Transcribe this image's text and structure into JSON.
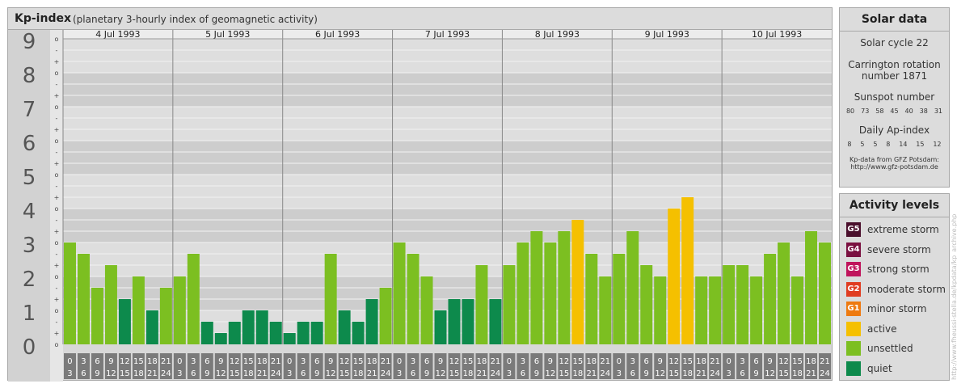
{
  "header": {
    "title": "Kp-index",
    "subtitle": "(planetary 3-hourly index of geomagnetic activity)"
  },
  "chart_data": {
    "type": "bar",
    "title": "Kp-index",
    "subtitle": "(planetary 3-hourly index of geomagnetic activity)",
    "ylim": [
      0,
      9
    ],
    "y_major_ticks": [
      "0",
      "1",
      "2",
      "3",
      "4",
      "5",
      "6",
      "7",
      "8",
      "9"
    ],
    "y_minor_ticks": [
      "-",
      "o",
      "+"
    ],
    "days": [
      "4 Jul 1993",
      "5 Jul 1993",
      "6 Jul 1993",
      "7 Jul 1993",
      "8 Jul 1993",
      "9 Jul 1993",
      "10 Jul 1993"
    ],
    "interval_start_hours": [
      "0",
      "3",
      "6",
      "9",
      "12",
      "15",
      "18",
      "21"
    ],
    "interval_end_hours": [
      "3",
      "6",
      "9",
      "12",
      "15",
      "18",
      "21",
      "24"
    ],
    "values": [
      3.0,
      2.667,
      1.667,
      2.333,
      1.333,
      2.0,
      1.0,
      1.667,
      2.0,
      2.667,
      0.667,
      0.333,
      0.667,
      1.0,
      1.0,
      0.667,
      0.333,
      0.667,
      0.667,
      2.667,
      1.0,
      0.667,
      1.333,
      1.667,
      3.0,
      2.667,
      2.0,
      1.0,
      1.333,
      1.333,
      2.333,
      1.333,
      2.333,
      3.0,
      3.333,
      3.0,
      3.333,
      3.667,
      2.667,
      2.0,
      2.667,
      3.333,
      2.333,
      2.0,
      4.0,
      4.333,
      2.0,
      2.0,
      2.333,
      2.333,
      2.0,
      2.667,
      3.0,
      2.0,
      3.333,
      3.0
    ],
    "color_scale": {
      "quiet": "#0d8a4c",
      "unsettled": "#7cbf21",
      "active": "#f5c000"
    },
    "grid": true
  },
  "solar_data": {
    "title": "Solar data",
    "solar_cycle": "Solar cycle 22",
    "carrington_line1": "Carrington rotation",
    "carrington_line2": "number 1871",
    "sunspot_title": "Sunspot number",
    "sunspot_values": [
      "80",
      "73",
      "58",
      "45",
      "40",
      "38",
      "31"
    ],
    "ap_title": "Daily Ap-index",
    "ap_values": [
      "8",
      "5",
      "5",
      "8",
      "14",
      "15",
      "12"
    ],
    "source_line1": "Kp-data from GFZ Potsdam:",
    "source_line2": "http://www.gfz-potsdam.de"
  },
  "activity_levels": {
    "title": "Activity levels",
    "items": [
      {
        "code": "G5",
        "label": "extreme storm",
        "color": "#4a0f2c",
        "icon": "g5-badge"
      },
      {
        "code": "G4",
        "label": "severe storm",
        "color": "#7a1040",
        "icon": "g4-badge"
      },
      {
        "code": "G3",
        "label": "strong storm",
        "color": "#c0145c",
        "icon": "g3-badge"
      },
      {
        "code": "G2",
        "label": "moderate storm",
        "color": "#e03c20",
        "icon": "g2-badge"
      },
      {
        "code": "G1",
        "label": "minor storm",
        "color": "#ee7a10",
        "icon": "g1-badge"
      },
      {
        "code": "",
        "label": "active",
        "color": "#f5c000",
        "icon": "active-swatch"
      },
      {
        "code": "",
        "label": "unsettled",
        "color": "#7cbf21",
        "icon": "unsettled-swatch"
      },
      {
        "code": "",
        "label": "quiet",
        "color": "#0d8a4c",
        "icon": "quiet-swatch"
      }
    ]
  },
  "watermark": "http://www.fheussi-stella.de/kpdata/kp_archive.php"
}
